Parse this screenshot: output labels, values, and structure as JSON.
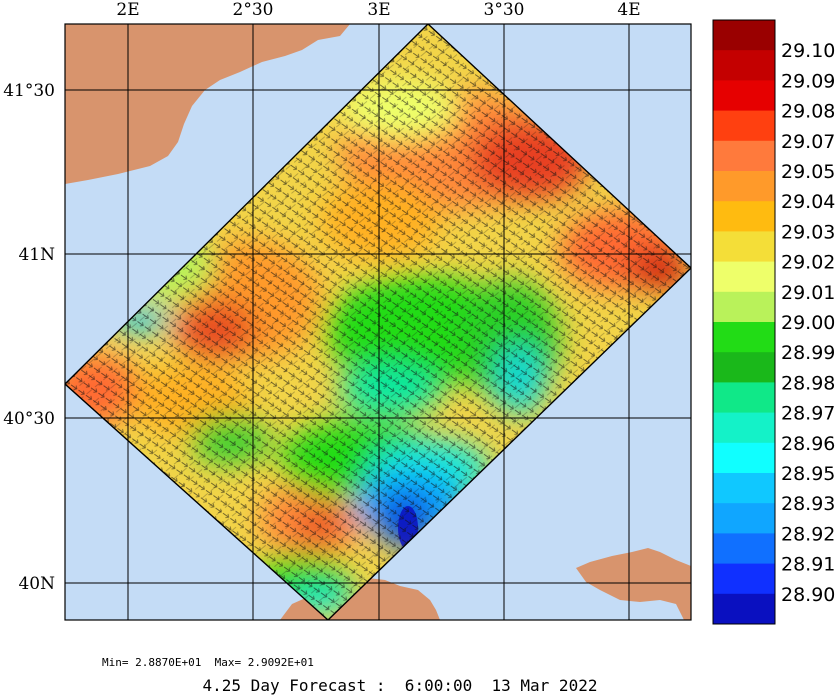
{
  "map": {
    "lon_labels": [
      "2E",
      "2°30",
      "3E",
      "3°30",
      "4E"
    ],
    "lat_labels": [
      "41°30",
      "41N",
      "40°30",
      "40N"
    ],
    "colors": {
      "sea": "#c4dcf6",
      "land": "#d8946d",
      "grid": "#000000"
    }
  },
  "colorbar": {
    "labels": [
      "29.10",
      "29.09",
      "29.08",
      "29.07",
      "29.05",
      "29.04",
      "29.03",
      "29.02",
      "29.01",
      "29.00",
      "28.99",
      "28.98",
      "28.97",
      "28.96",
      "28.95",
      "28.93",
      "28.92",
      "28.91",
      "28.90"
    ],
    "colors": [
      "#9a0000",
      "#c40000",
      "#e60000",
      "#ff4010",
      "#ff7a3c",
      "#ff9a2a",
      "#ffbb10",
      "#f4de38",
      "#eeff6a",
      "#b9f25a",
      "#22dc16",
      "#1ab81a",
      "#10e888",
      "#14f2c8",
      "#10ffff",
      "#10c8ff",
      "#10a6ff",
      "#1070ff",
      "#1030ff",
      "#0a10c0"
    ]
  },
  "stats": "Min= 2.8870E+01  Max= 2.9092E+01",
  "footer": "4.25 Day Forecast :  6:00:00  13 Mar 2022"
}
